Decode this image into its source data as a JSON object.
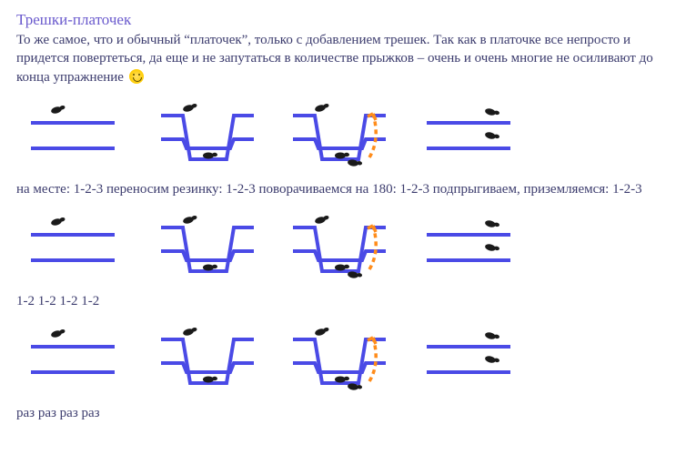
{
  "title": "Трешки-платочек",
  "intro_part1": "То же самое, что и обычный “платочек”, только с добавлением трешек. Так как в платочке все непросто и придется повертеться, да еще и не запутаться в количестве прыжков – очень и очень многие не осиливают до конца упражнение",
  "caption1": "на месте: 1-2-3 переносим резинку: 1-2-3 поворачиваемся на 180: 1-2-3 подпрыгиваем, приземляемся: 1-2-3",
  "caption2": "1-2 1-2 1-2 1-2",
  "caption3": "раз раз раз раз",
  "colors": {
    "text": "#3b3b6d",
    "title": "#6a5acd",
    "band": "#4a4ae6",
    "arrow": "#ff8c1a",
    "feet": "#1a1a1a"
  },
  "diagram_row": {
    "cells": [
      {
        "type": "flat"
      },
      {
        "type": "dip"
      },
      {
        "type": "dip_arrow"
      },
      {
        "type": "flat_both"
      }
    ]
  }
}
